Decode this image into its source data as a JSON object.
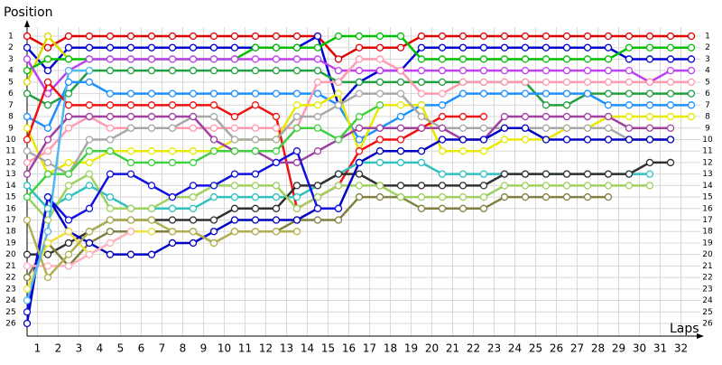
{
  "chart_data": {
    "type": "lapchart",
    "y_label": "Position",
    "x_label": "Laps",
    "x": [
      0,
      1,
      2,
      3,
      4,
      5,
      6,
      7,
      8,
      9,
      10,
      11,
      12,
      13,
      14,
      15,
      16,
      17,
      18,
      19,
      20,
      21,
      22,
      23,
      24,
      25,
      26,
      27,
      28,
      29,
      30,
      31,
      32
    ],
    "xlim": [
      0,
      32
    ],
    "ylim": [
      1,
      26
    ],
    "xticks": [
      {
        "value": 0.5,
        "label": "1"
      },
      {
        "value": 1.5,
        "label": "2"
      },
      {
        "value": 2.5,
        "label": "3"
      },
      {
        "value": 3.5,
        "label": "4"
      },
      {
        "value": 4.5,
        "label": "5"
      },
      {
        "value": 5.5,
        "label": "6"
      },
      {
        "value": 6.5,
        "label": "7"
      },
      {
        "value": 7.5,
        "label": "8"
      },
      {
        "value": 8.5,
        "label": "9"
      },
      {
        "value": 9.5,
        "label": "10"
      },
      {
        "value": 10.5,
        "label": "11"
      },
      {
        "value": 11.5,
        "label": "12"
      },
      {
        "value": 12.5,
        "label": "13"
      },
      {
        "value": 13.5,
        "label": "14"
      },
      {
        "value": 14.5,
        "label": "15"
      },
      {
        "value": 15.5,
        "label": "16"
      },
      {
        "value": 16.5,
        "label": "17"
      },
      {
        "value": 17.5,
        "label": "18"
      },
      {
        "value": 18.5,
        "label": "19"
      },
      {
        "value": 19.5,
        "label": "20"
      },
      {
        "value": 20.5,
        "label": "21"
      },
      {
        "value": 21.5,
        "label": "22"
      },
      {
        "value": 22.5,
        "label": "23"
      },
      {
        "value": 23.5,
        "label": "24"
      },
      {
        "value": 24.5,
        "label": "25"
      },
      {
        "value": 25.5,
        "label": "26"
      },
      {
        "value": 26.5,
        "label": "27"
      },
      {
        "value": 27.5,
        "label": "28"
      },
      {
        "value": 28.5,
        "label": "29"
      },
      {
        "value": 29.5,
        "label": "30"
      },
      {
        "value": 30.5,
        "label": "31"
      },
      {
        "value": 31.5,
        "label": "32"
      }
    ],
    "yticks": [
      1,
      2,
      3,
      4,
      5,
      6,
      7,
      8,
      9,
      10,
      11,
      12,
      13,
      14,
      15,
      16,
      17,
      18,
      19,
      20,
      21,
      22,
      23,
      24,
      25,
      26
    ],
    "grid": true,
    "series": [
      {
        "color": "#e00000",
        "values": [
          1,
          2,
          1,
          1,
          1,
          1,
          1,
          1,
          1,
          1,
          1,
          1,
          1,
          1,
          1,
          3,
          2,
          2,
          2,
          1,
          1,
          1,
          1,
          1,
          1,
          1,
          1,
          1,
          1,
          1,
          1,
          1,
          1
        ]
      },
      {
        "color": "#0000d0",
        "values": [
          2,
          4,
          2,
          2,
          2,
          2,
          2,
          2,
          2,
          2,
          2,
          2,
          2,
          2,
          1,
          7,
          5,
          4,
          4,
          2,
          2,
          2,
          2,
          2,
          2,
          2,
          2,
          2,
          2,
          3,
          3,
          3,
          3
        ]
      },
      {
        "color": "#d8d800",
        "values": [
          5,
          1,
          3,
          null,
          null,
          null,
          null,
          null,
          null,
          null,
          null,
          null,
          null,
          null,
          null,
          null,
          null,
          null,
          null,
          null,
          null,
          null,
          null,
          null,
          null,
          null,
          null,
          null,
          null,
          null,
          null,
          null,
          null
        ]
      },
      {
        "color": "#00c000",
        "values": [
          4,
          3,
          3,
          3,
          3,
          3,
          3,
          3,
          3,
          3,
          3,
          2,
          2,
          2,
          2,
          1,
          1,
          1,
          1,
          3,
          3,
          3,
          3,
          3,
          3,
          3,
          3,
          3,
          3,
          2,
          2,
          2,
          2
        ]
      },
      {
        "color": "#c040f0",
        "values": [
          3,
          6,
          4,
          3,
          3,
          3,
          3,
          3,
          3,
          3,
          3,
          3,
          3,
          3,
          3,
          4,
          4,
          4,
          4,
          4,
          4,
          4,
          4,
          4,
          4,
          4,
          4,
          4,
          4,
          4,
          5,
          4,
          4
        ]
      },
      {
        "color": "#20a040",
        "values": [
          6,
          7,
          6,
          4,
          4,
          4,
          4,
          4,
          4,
          4,
          4,
          4,
          4,
          4,
          4,
          5,
          5,
          5,
          5,
          5,
          5,
          5,
          5,
          5,
          5,
          7,
          7,
          6,
          6,
          6,
          6,
          6,
          6
        ]
      },
      {
        "color": "#1e90ff",
        "values": [
          8,
          9,
          5,
          5,
          6,
          6,
          6,
          6,
          6,
          6,
          6,
          6,
          6,
          6,
          6,
          7,
          10,
          9,
          8,
          7,
          7,
          6,
          6,
          6,
          6,
          6,
          6,
          6,
          7,
          7,
          7,
          7,
          7
        ]
      },
      {
        "color": "#ff9ab0",
        "values": [
          12,
          11,
          9,
          8,
          9,
          9,
          9,
          9,
          9,
          9,
          9,
          9,
          9,
          9,
          5,
          5,
          3,
          3,
          4,
          6,
          6,
          5,
          5,
          5,
          5,
          5,
          5,
          5,
          5,
          5,
          5,
          5,
          5
        ]
      },
      {
        "color": "#e8e800",
        "values": [
          9,
          13,
          12,
          12,
          11,
          11,
          11,
          11,
          11,
          11,
          10,
          10,
          10,
          7,
          7,
          6,
          11,
          7,
          7,
          7,
          11,
          11,
          11,
          10,
          10,
          10,
          9,
          9,
          8,
          8,
          8,
          8,
          8
        ]
      },
      {
        "color": "#f01010",
        "values": [
          10,
          5,
          7,
          7,
          7,
          7,
          7,
          7,
          7,
          7,
          8,
          7,
          8,
          16,
          15,
          14,
          11,
          10,
          10,
          9,
          8,
          8,
          8,
          null,
          null,
          null,
          null,
          null,
          null,
          null,
          null,
          null,
          null
        ]
      },
      {
        "color": "#a8a8a8",
        "values": [
          11,
          12,
          13,
          10,
          10,
          9,
          9,
          9,
          8,
          8,
          10,
          10,
          10,
          8,
          8,
          7,
          6,
          6,
          6,
          8,
          9,
          9,
          9,
          9,
          9,
          9,
          9,
          9,
          9,
          10,
          10,
          10,
          null
        ]
      },
      {
        "color": "#a040a0",
        "values": [
          13,
          10,
          8,
          8,
          8,
          8,
          8,
          8,
          8,
          10,
          11,
          11,
          12,
          12,
          11,
          10,
          9,
          9,
          9,
          9,
          9,
          10,
          10,
          8,
          8,
          8,
          8,
          8,
          8,
          9,
          9,
          9,
          null
        ]
      },
      {
        "color": "#30c0c0",
        "values": [
          14,
          16,
          15,
          14,
          15,
          16,
          16,
          16,
          16,
          15,
          15,
          15,
          15,
          15,
          14,
          13,
          12,
          12,
          12,
          12,
          13,
          13,
          13,
          13,
          13,
          13,
          13,
          13,
          13,
          13,
          13,
          null,
          null
        ]
      },
      {
        "color": "#303030",
        "values": [
          20,
          20,
          19,
          18,
          17,
          17,
          17,
          17,
          17,
          17,
          16,
          16,
          16,
          14,
          14,
          13,
          13,
          14,
          14,
          14,
          14,
          14,
          14,
          13,
          13,
          13,
          13,
          13,
          13,
          13,
          12,
          12,
          null
        ]
      },
      {
        "color": "#808040",
        "values": [
          22,
          19,
          21,
          19,
          18,
          18,
          18,
          18,
          18,
          19,
          18,
          18,
          18,
          17,
          17,
          17,
          15,
          15,
          15,
          16,
          16,
          16,
          16,
          15,
          15,
          15,
          15,
          15,
          15,
          null,
          null,
          null,
          null
        ]
      },
      {
        "color": "#a0d060",
        "values": [
          15,
          17,
          14,
          13,
          16,
          16,
          16,
          15,
          15,
          14,
          14,
          14,
          14,
          16,
          15,
          14,
          14,
          14,
          15,
          15,
          15,
          15,
          15,
          14,
          14,
          14,
          14,
          14,
          14,
          14,
          14,
          null,
          null
        ]
      },
      {
        "color": "#0000c0",
        "values": [
          26,
          15,
          18,
          19,
          20,
          20,
          20,
          19,
          19,
          18,
          17,
          17,
          17,
          17,
          16,
          16,
          12,
          11,
          11,
          11,
          10,
          10,
          10,
          9,
          9,
          10,
          10,
          10,
          10,
          10,
          10,
          10,
          null
        ]
      },
      {
        "color": "#1010e0",
        "values": [
          25,
          15,
          17,
          16,
          13,
          13,
          14,
          15,
          14,
          14,
          13,
          13,
          12,
          11,
          16,
          16,
          null,
          null,
          null,
          null,
          null,
          null,
          null,
          null,
          null,
          null,
          null,
          null,
          null,
          null,
          null,
          null,
          null
        ]
      },
      {
        "color": "#40d040",
        "values": [
          15,
          13,
          13,
          11,
          11,
          12,
          12,
          12,
          12,
          11,
          11,
          11,
          11,
          9,
          9,
          10,
          8,
          7,
          null,
          null,
          null,
          null,
          null,
          null,
          null,
          null,
          null,
          null,
          null,
          null,
          null,
          null,
          null
        ]
      },
      {
        "color": "#f0e040",
        "values": [
          23,
          19,
          18,
          20,
          19,
          18,
          18,
          null,
          null,
          null,
          null,
          null,
          null,
          null,
          null,
          null,
          null,
          null,
          null,
          null,
          null,
          null,
          null,
          null,
          null,
          null,
          null,
          null,
          null,
          null,
          null,
          null,
          null
        ]
      },
      {
        "color": "#ffb0c0",
        "values": [
          21,
          21,
          21,
          20,
          19,
          18,
          null,
          null,
          null,
          null,
          null,
          null,
          null,
          null,
          null,
          null,
          null,
          null,
          null,
          null,
          null,
          null,
          null,
          null,
          null,
          null,
          null,
          null,
          null,
          null,
          null,
          null,
          null
        ]
      },
      {
        "color": "#b0b050",
        "values": [
          17,
          22,
          20,
          18,
          17,
          17,
          17,
          18,
          18,
          19,
          18,
          18,
          18,
          18,
          null,
          null,
          null,
          null,
          null,
          null,
          null,
          null,
          null,
          null,
          null,
          null,
          null,
          null,
          null,
          null,
          null,
          null,
          null
        ]
      },
      {
        "color": "#50b8f0",
        "values": [
          24,
          18,
          4,
          4,
          null,
          null,
          null,
          null,
          null,
          null,
          null,
          null,
          null,
          null,
          null,
          null,
          null,
          null,
          null,
          null,
          null,
          null,
          null,
          null,
          null,
          null,
          null,
          null,
          null,
          null,
          null,
          null,
          null
        ]
      }
    ]
  }
}
